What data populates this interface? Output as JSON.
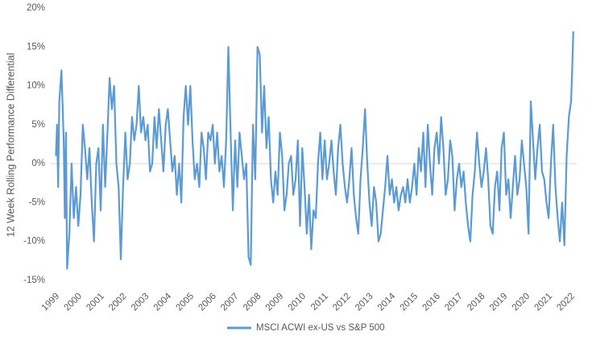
{
  "chart_data": {
    "type": "line",
    "y_label": "12 Week Rolling Performance Differential",
    "x": [
      1999.05,
      1999.1,
      1999.15,
      1999.2,
      1999.3,
      1999.4,
      1999.45,
      1999.5,
      1999.55,
      1999.65,
      1999.75,
      1999.85,
      1999.95,
      2000.05,
      2000.15,
      2000.25,
      2000.35,
      2000.45,
      2000.55,
      2000.65,
      2000.75,
      2000.85,
      2000.95,
      2001.05,
      2001.15,
      2001.25,
      2001.35,
      2001.45,
      2001.55,
      2001.65,
      2001.75,
      2001.85,
      2001.95,
      2002.05,
      2002.15,
      2002.25,
      2002.35,
      2002.45,
      2002.55,
      2002.65,
      2002.75,
      2002.85,
      2002.95,
      2003.05,
      2003.15,
      2003.25,
      2003.35,
      2003.45,
      2003.55,
      2003.65,
      2003.75,
      2003.85,
      2003.95,
      2004.05,
      2004.15,
      2004.25,
      2004.35,
      2004.45,
      2004.55,
      2004.65,
      2004.75,
      2004.85,
      2004.95,
      2005.05,
      2005.15,
      2005.25,
      2005.35,
      2005.45,
      2005.55,
      2005.65,
      2005.75,
      2005.85,
      2005.95,
      2006.05,
      2006.15,
      2006.25,
      2006.35,
      2006.45,
      2006.55,
      2006.65,
      2006.75,
      2006.85,
      2006.95,
      2007.05,
      2007.15,
      2007.25,
      2007.35,
      2007.45,
      2007.55,
      2007.65,
      2007.75,
      2007.85,
      2007.95,
      2008.05,
      2008.15,
      2008.25,
      2008.35,
      2008.45,
      2008.55,
      2008.65,
      2008.75,
      2008.85,
      2008.95,
      2009.05,
      2009.15,
      2009.25,
      2009.35,
      2009.45,
      2009.55,
      2009.65,
      2009.75,
      2009.85,
      2009.95,
      2010.05,
      2010.15,
      2010.25,
      2010.35,
      2010.45,
      2010.55,
      2010.65,
      2010.75,
      2010.85,
      2010.95,
      2011.05,
      2011.15,
      2011.25,
      2011.35,
      2011.45,
      2011.55,
      2011.65,
      2011.75,
      2011.85,
      2011.95,
      2012.05,
      2012.15,
      2012.25,
      2012.35,
      2012.45,
      2012.55,
      2012.65,
      2012.75,
      2012.85,
      2012.95,
      2013.05,
      2013.15,
      2013.25,
      2013.35,
      2013.45,
      2013.55,
      2013.65,
      2013.75,
      2013.85,
      2013.95,
      2014.05,
      2014.15,
      2014.25,
      2014.35,
      2014.45,
      2014.55,
      2014.65,
      2014.75,
      2014.85,
      2014.95,
      2015.05,
      2015.15,
      2015.25,
      2015.35,
      2015.45,
      2015.55,
      2015.65,
      2015.75,
      2015.85,
      2015.95,
      2016.05,
      2016.15,
      2016.25,
      2016.35,
      2016.45,
      2016.55,
      2016.65,
      2016.75,
      2016.85,
      2016.95,
      2017.05,
      2017.15,
      2017.25,
      2017.35,
      2017.45,
      2017.55,
      2017.65,
      2017.75,
      2017.85,
      2017.95,
      2018.05,
      2018.15,
      2018.25,
      2018.35,
      2018.45,
      2018.55,
      2018.65,
      2018.75,
      2018.85,
      2018.95,
      2019.05,
      2019.15,
      2019.25,
      2019.35,
      2019.45,
      2019.55,
      2019.65,
      2019.75,
      2019.85,
      2019.95,
      2020.05,
      2020.15,
      2020.25,
      2020.35,
      2020.45,
      2020.55,
      2020.65,
      2020.75,
      2020.85,
      2020.95,
      2021.05,
      2021.15,
      2021.25,
      2021.35,
      2021.45,
      2021.55,
      2021.65,
      2021.75,
      2021.85,
      2021.95,
      2022.05,
      2022.1,
      2022.15
    ],
    "series": [
      {
        "name": "MSCI ACWI ex-US vs S&P 500",
        "color": "#5b9bd5",
        "values": [
          1,
          5,
          -3,
          8,
          12,
          3,
          -7,
          4,
          -13.5,
          -9,
          0,
          -7,
          -3,
          -8,
          -4,
          5,
          2,
          -2,
          2,
          -5,
          -10,
          0,
          2,
          -6,
          5,
          -3,
          4,
          11,
          7,
          10,
          0,
          -3,
          -12.3,
          -3,
          4,
          -2,
          0,
          6,
          3,
          5,
          10,
          4,
          6,
          3,
          5,
          -1,
          0,
          6,
          2,
          7,
          3,
          -1,
          5,
          7,
          3,
          -1,
          1,
          -4,
          0,
          -5,
          6,
          10,
          5,
          10,
          3,
          -2,
          0,
          -3,
          4,
          2,
          -2,
          4,
          3,
          5,
          0,
          4,
          -1,
          1,
          -3,
          3,
          15,
          4,
          -6,
          3,
          -3,
          4,
          1,
          -2,
          0,
          -12,
          -13,
          5,
          -2,
          15,
          14,
          4,
          10,
          2,
          6,
          -2,
          -5,
          -1,
          -4,
          4,
          1,
          -6,
          -4,
          0,
          1,
          -4,
          -2,
          3,
          -8,
          2,
          -3,
          -9,
          -4,
          -11,
          -6,
          -7,
          0,
          4,
          -2,
          3,
          -2,
          0,
          3,
          -1,
          -4,
          2,
          5,
          0,
          -3,
          -5,
          -2,
          2,
          -4,
          -7,
          -9,
          -2,
          2,
          7,
          0,
          -5,
          -8,
          -3,
          -5,
          -10,
          -9,
          -6,
          -3,
          1,
          -4,
          -2,
          -5,
          -3,
          -6,
          -4,
          -3,
          -5,
          -2,
          -5,
          -3,
          0,
          -4,
          2,
          -1,
          4,
          -3,
          5,
          0,
          -4,
          2,
          4,
          0,
          6,
          2,
          -4,
          -2,
          3,
          1,
          -6,
          -2,
          0,
          -3,
          -1,
          -5,
          -8,
          -10,
          -4,
          -1,
          4,
          0,
          -3,
          -1,
          2,
          -2,
          -8,
          -9,
          -3,
          -1,
          -6,
          2,
          4,
          -4,
          -2,
          -7,
          -3,
          1,
          -4,
          -2,
          3,
          0,
          -3,
          -9,
          8,
          3,
          -2,
          2,
          5,
          -1,
          -2,
          -5,
          -7,
          0,
          5,
          -3,
          -7,
          -10,
          -5,
          -10.5,
          1,
          6,
          8,
          12,
          17
        ]
      }
    ],
    "xlim": [
      1999,
      2022.3
    ],
    "xticks": [
      1999,
      2000,
      2001,
      2002,
      2003,
      2004,
      2005,
      2006,
      2007,
      2008,
      2009,
      2010,
      2011,
      2012,
      2013,
      2014,
      2015,
      2016,
      2017,
      2018,
      2019,
      2020,
      2021,
      2022
    ],
    "ylim": [
      -15,
      20
    ],
    "yticks": [
      {
        "value": -15,
        "label": "-15%"
      },
      {
        "value": -10,
        "label": "-10%"
      },
      {
        "value": -5,
        "label": "-5%"
      },
      {
        "value": 0,
        "label": "0%"
      },
      {
        "value": 5,
        "label": "5%"
      },
      {
        "value": 10,
        "label": "10%"
      },
      {
        "value": 15,
        "label": "15%"
      },
      {
        "value": 20,
        "label": "20%"
      }
    ],
    "grid": false,
    "legend": "bottom"
  }
}
